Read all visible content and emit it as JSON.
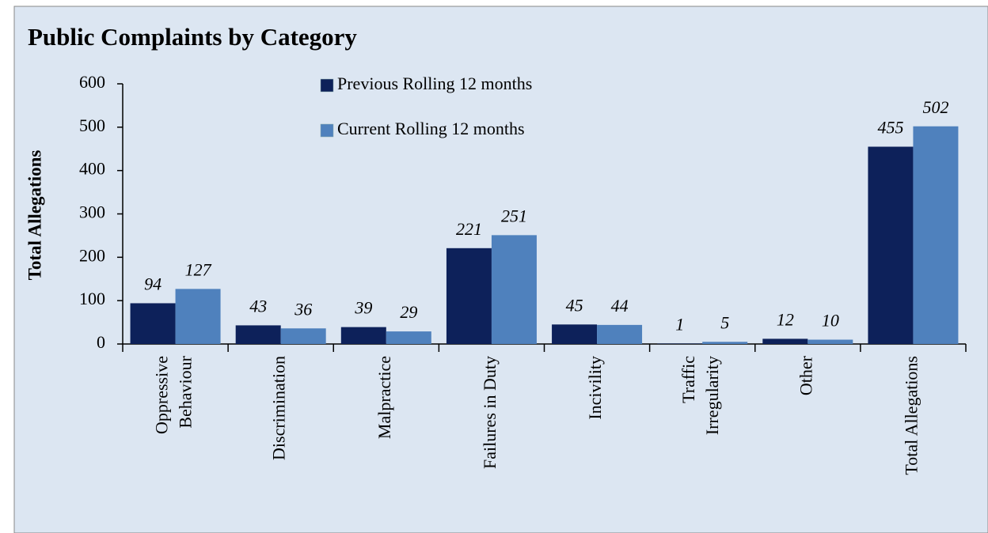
{
  "chart_data": {
    "type": "bar",
    "title": "Public Complaints by Category",
    "y_label": "Total Allegations",
    "categories": [
      "Oppressive\nBehaviour",
      "Discrimination",
      "Malpractice",
      "Failures in Duty",
      "Incivility",
      "Traffic\nIrregularity",
      "Other",
      "Total Allegations"
    ],
    "series": [
      {
        "name": "Previous Rolling 12 months",
        "color": "#0d215a",
        "values": [
          94,
          43,
          39,
          221,
          45,
          1,
          12,
          455
        ]
      },
      {
        "name": "Current Rolling 12 months",
        "color": "#4f81bd",
        "values": [
          127,
          36,
          29,
          251,
          44,
          5,
          10,
          502
        ]
      }
    ],
    "ylim": [
      0,
      600
    ],
    "yticks": [
      0,
      100,
      200,
      300,
      400,
      500,
      600
    ],
    "grid": false,
    "legend": "top"
  }
}
